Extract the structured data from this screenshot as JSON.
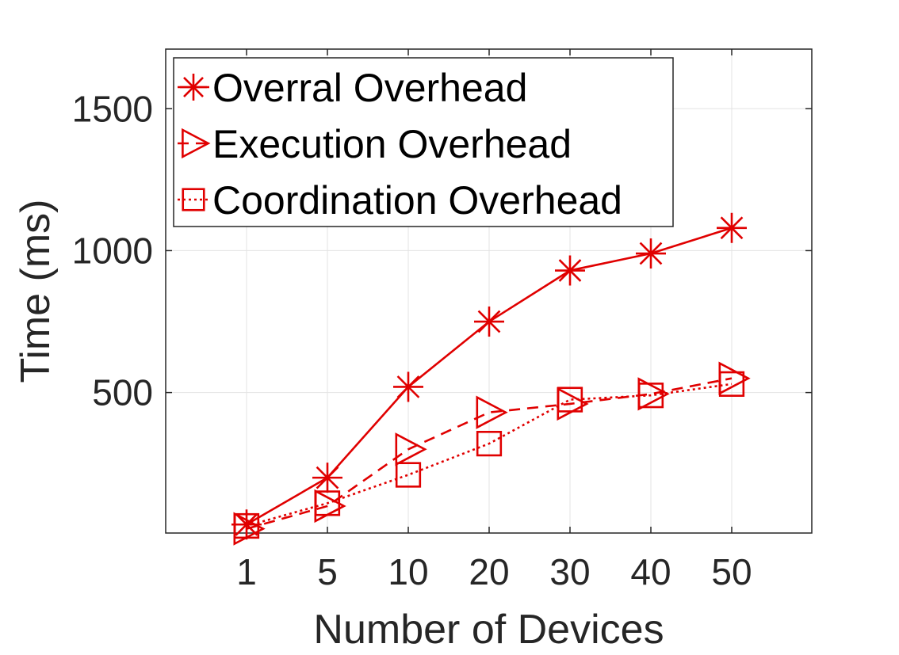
{
  "chart_data": {
    "type": "line",
    "categories": [
      "1",
      "5",
      "10",
      "20",
      "30",
      "40",
      "50"
    ],
    "xlabel": "Number of Devices",
    "ylabel": "Time (ms)",
    "ylim": [
      5,
      1710
    ],
    "yticks": [
      500,
      1000,
      1500
    ],
    "grid": true,
    "legend_position": "top-left",
    "color": "#e00000",
    "series": [
      {
        "name": "Overral Overhead",
        "marker": "asterisk",
        "line": "solid",
        "values": [
          35,
          200,
          520,
          750,
          930,
          990,
          1080
        ]
      },
      {
        "name": "Execution Overhead",
        "marker": "triangle-right",
        "line": "dashed",
        "values": [
          20,
          100,
          300,
          430,
          460,
          495,
          550
        ]
      },
      {
        "name": "Coordination Overhead",
        "marker": "square",
        "line": "dotted",
        "values": [
          30,
          110,
          210,
          320,
          475,
          490,
          530
        ]
      }
    ]
  }
}
